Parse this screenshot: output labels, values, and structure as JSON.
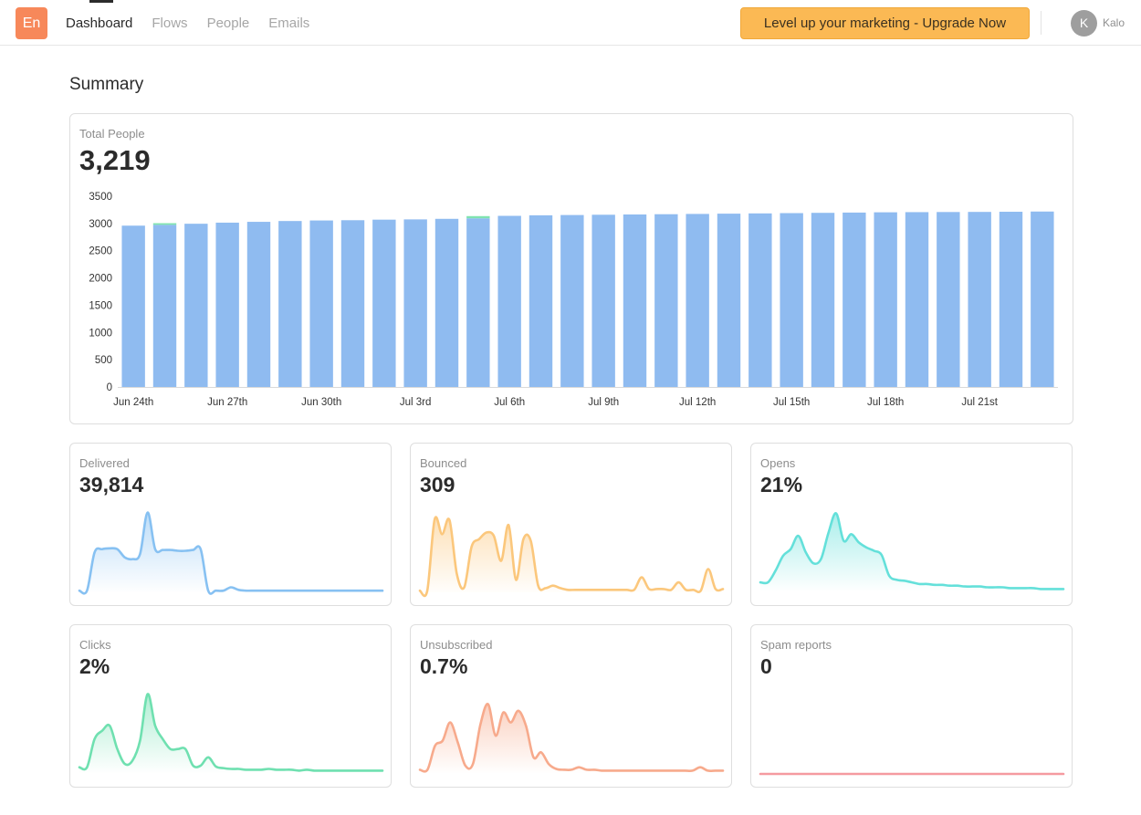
{
  "nav": {
    "logo": "En",
    "items": [
      "Dashboard",
      "Flows",
      "People",
      "Emails"
    ],
    "active": 0
  },
  "upgrade_label": "Level up your marketing - Upgrade Now",
  "user": {
    "initial": "K",
    "name": "Kalo"
  },
  "page_title": "Summary",
  "total_people": {
    "label": "Total People",
    "value": "3,219",
    "chart_data": {
      "type": "bar",
      "categories": [
        "Jun 24th",
        "Jun 25th",
        "Jun 26th",
        "Jun 27th",
        "Jun 28th",
        "Jun 29th",
        "Jun 30th",
        "Jul 1st",
        "Jul 2nd",
        "Jul 3rd",
        "Jul 4th",
        "Jul 5th",
        "Jul 6th",
        "Jul 7th",
        "Jul 8th",
        "Jul 9th",
        "Jul 10th",
        "Jul 11th",
        "Jul 12th",
        "Jul 13th",
        "Jul 14th",
        "Jul 15th",
        "Jul 16th",
        "Jul 17th",
        "Jul 18th",
        "Jul 19th",
        "Jul 20th",
        "Jul 21st",
        "Jul 22nd",
        "Jul 23rd"
      ],
      "tick_labels": [
        "Jun 24th",
        "Jun 27th",
        "Jun 30th",
        "Jul 3rd",
        "Jul 6th",
        "Jul 9th",
        "Jul 12th",
        "Jul 15th",
        "Jul 18th",
        "Jul 21st"
      ],
      "series": [
        {
          "values": [
            2960,
            2975,
            2995,
            3015,
            3030,
            3045,
            3055,
            3060,
            3070,
            3075,
            3085,
            3095,
            3140,
            3150,
            3155,
            3160,
            3165,
            3170,
            3175,
            3180,
            3185,
            3190,
            3195,
            3200,
            3205,
            3208,
            3210,
            3212,
            3215,
            3219
          ],
          "color": "#8fbbf0"
        },
        {
          "values": [
            0,
            30,
            0,
            0,
            0,
            0,
            0,
            0,
            0,
            0,
            0,
            40,
            0,
            0,
            0,
            0,
            0,
            0,
            0,
            0,
            0,
            0,
            0,
            0,
            0,
            0,
            0,
            0,
            0,
            0
          ],
          "color": "#7fe3b0"
        }
      ],
      "yticks": [
        0,
        500,
        1000,
        1500,
        2000,
        2500,
        3000,
        3500
      ],
      "ylim": [
        0,
        3500
      ]
    }
  },
  "metrics": [
    {
      "label": "Delivered",
      "value": "39,814",
      "color": "#87c1f2",
      "chart_data": {
        "type": "area",
        "values": [
          2,
          2,
          48,
          52,
          53,
          52,
          42,
          40,
          46,
          96,
          52,
          51,
          51,
          50,
          50,
          51,
          52,
          2,
          2,
          2,
          6,
          3,
          2,
          2,
          2,
          2,
          2,
          2,
          2,
          2,
          2,
          2,
          2,
          2,
          2,
          2,
          2,
          2,
          2,
          2,
          2
        ]
      }
    },
    {
      "label": "Bounced",
      "value": "309",
      "color": "#fbc77c",
      "chart_data": {
        "type": "area",
        "values": [
          2,
          2,
          88,
          70,
          87,
          22,
          6,
          55,
          64,
          72,
          68,
          38,
          81,
          15,
          64,
          62,
          8,
          5,
          8,
          5,
          3,
          3,
          3,
          3,
          3,
          3,
          3,
          3,
          3,
          3,
          18,
          4,
          4,
          4,
          3,
          12,
          3,
          3,
          2,
          28,
          4,
          4
        ]
      }
    },
    {
      "label": "Opens",
      "value": "21%",
      "color": "#64e0da",
      "chart_data": {
        "type": "area",
        "values": [
          12,
          12,
          26,
          44,
          52,
          68,
          48,
          35,
          40,
          72,
          95,
          62,
          70,
          60,
          54,
          50,
          45,
          20,
          15,
          14,
          12,
          10,
          10,
          9,
          9,
          8,
          8,
          7,
          7,
          7,
          6,
          6,
          6,
          5,
          5,
          5,
          5,
          4,
          4,
          4,
          4
        ]
      }
    },
    {
      "label": "Clicks",
      "value": "2%",
      "color": "#6fe0b0",
      "chart_data": {
        "type": "area",
        "values": [
          8,
          8,
          42,
          52,
          58,
          30,
          12,
          16,
          40,
          96,
          58,
          42,
          30,
          30,
          30,
          10,
          10,
          20,
          9,
          7,
          6,
          6,
          5,
          5,
          5,
          6,
          5,
          5,
          5,
          4,
          5,
          4,
          4,
          4,
          4,
          4,
          4,
          4,
          4,
          4,
          4
        ]
      }
    },
    {
      "label": "Unsubscribed",
      "value": "0.7%",
      "color": "#f7aa8c",
      "chart_data": {
        "type": "area",
        "values": [
          5,
          5,
          34,
          40,
          62,
          38,
          10,
          12,
          60,
          84,
          46,
          74,
          62,
          76,
          58,
          20,
          26,
          12,
          6,
          5,
          5,
          8,
          5,
          5,
          4,
          4,
          4,
          4,
          4,
          4,
          4,
          4,
          4,
          4,
          4,
          4,
          4,
          8,
          4,
          4,
          4
        ]
      }
    },
    {
      "label": "Spam reports",
      "value": "0",
      "color": "#f59aa0",
      "chart_data": {
        "type": "line",
        "values": [
          0,
          0,
          0,
          0,
          0,
          0,
          0,
          0,
          0,
          0,
          0,
          0,
          0,
          0,
          0,
          0,
          0,
          0,
          0,
          0
        ]
      }
    }
  ]
}
